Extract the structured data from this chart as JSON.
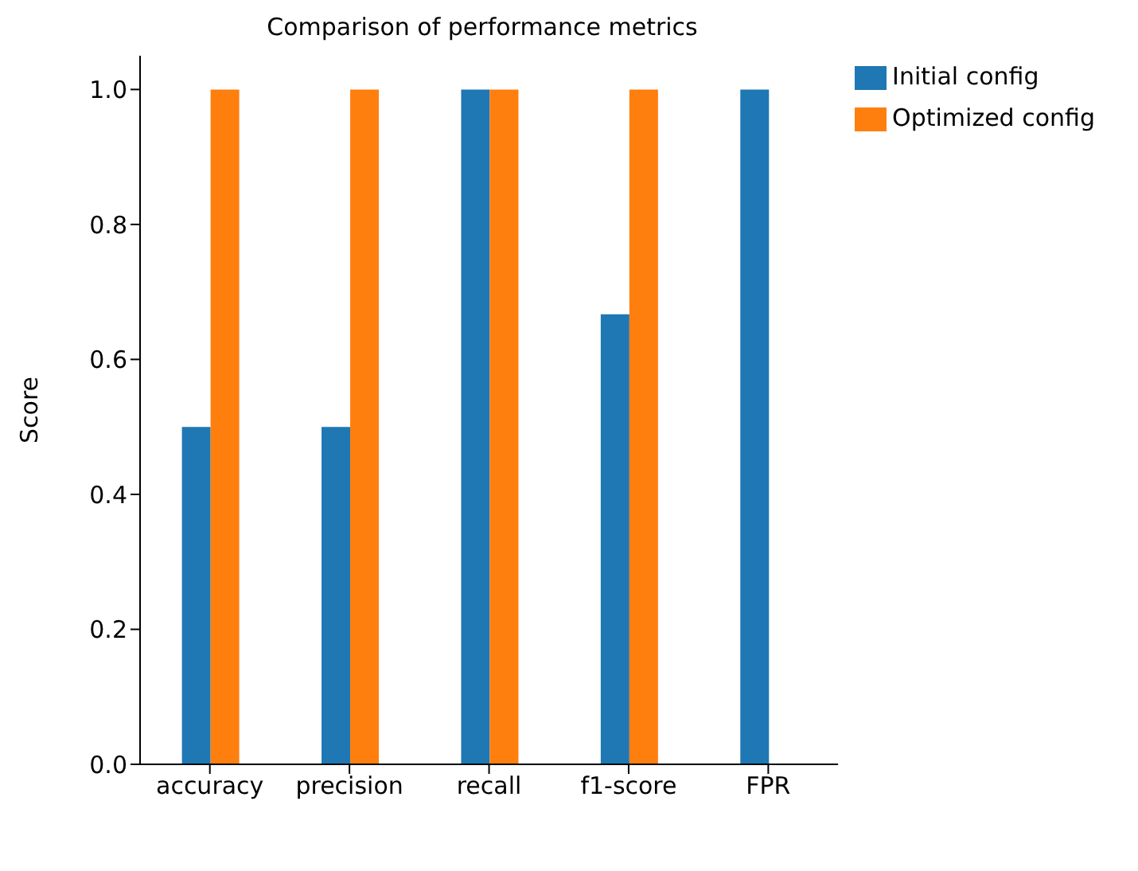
{
  "chart_data": {
    "type": "bar",
    "title": "Comparison of performance metrics",
    "ylabel": "Score",
    "categories": [
      "accuracy",
      "precision",
      "recall",
      "f1-score",
      "FPR"
    ],
    "series": [
      {
        "name": "Initial config",
        "color": "#1f77b4",
        "values": [
          0.5,
          0.5,
          1.0,
          0.667,
          1.0
        ]
      },
      {
        "name": "Optimized config",
        "color": "#ff7f0e",
        "values": [
          1.0,
          1.0,
          1.0,
          1.0,
          0.0
        ]
      }
    ],
    "ylim": [
      0,
      1.05
    ],
    "yticks": [
      {
        "value": 0,
        "label": "0.0"
      },
      {
        "value": 0.2,
        "label": "0.2"
      },
      {
        "value": 0.4,
        "label": "0.4"
      },
      {
        "value": 0.6,
        "label": "0.6"
      },
      {
        "value": 0.8,
        "label": "0.8"
      },
      {
        "value": 1,
        "label": "1.0"
      }
    ],
    "grid": false,
    "legend": "top right"
  }
}
